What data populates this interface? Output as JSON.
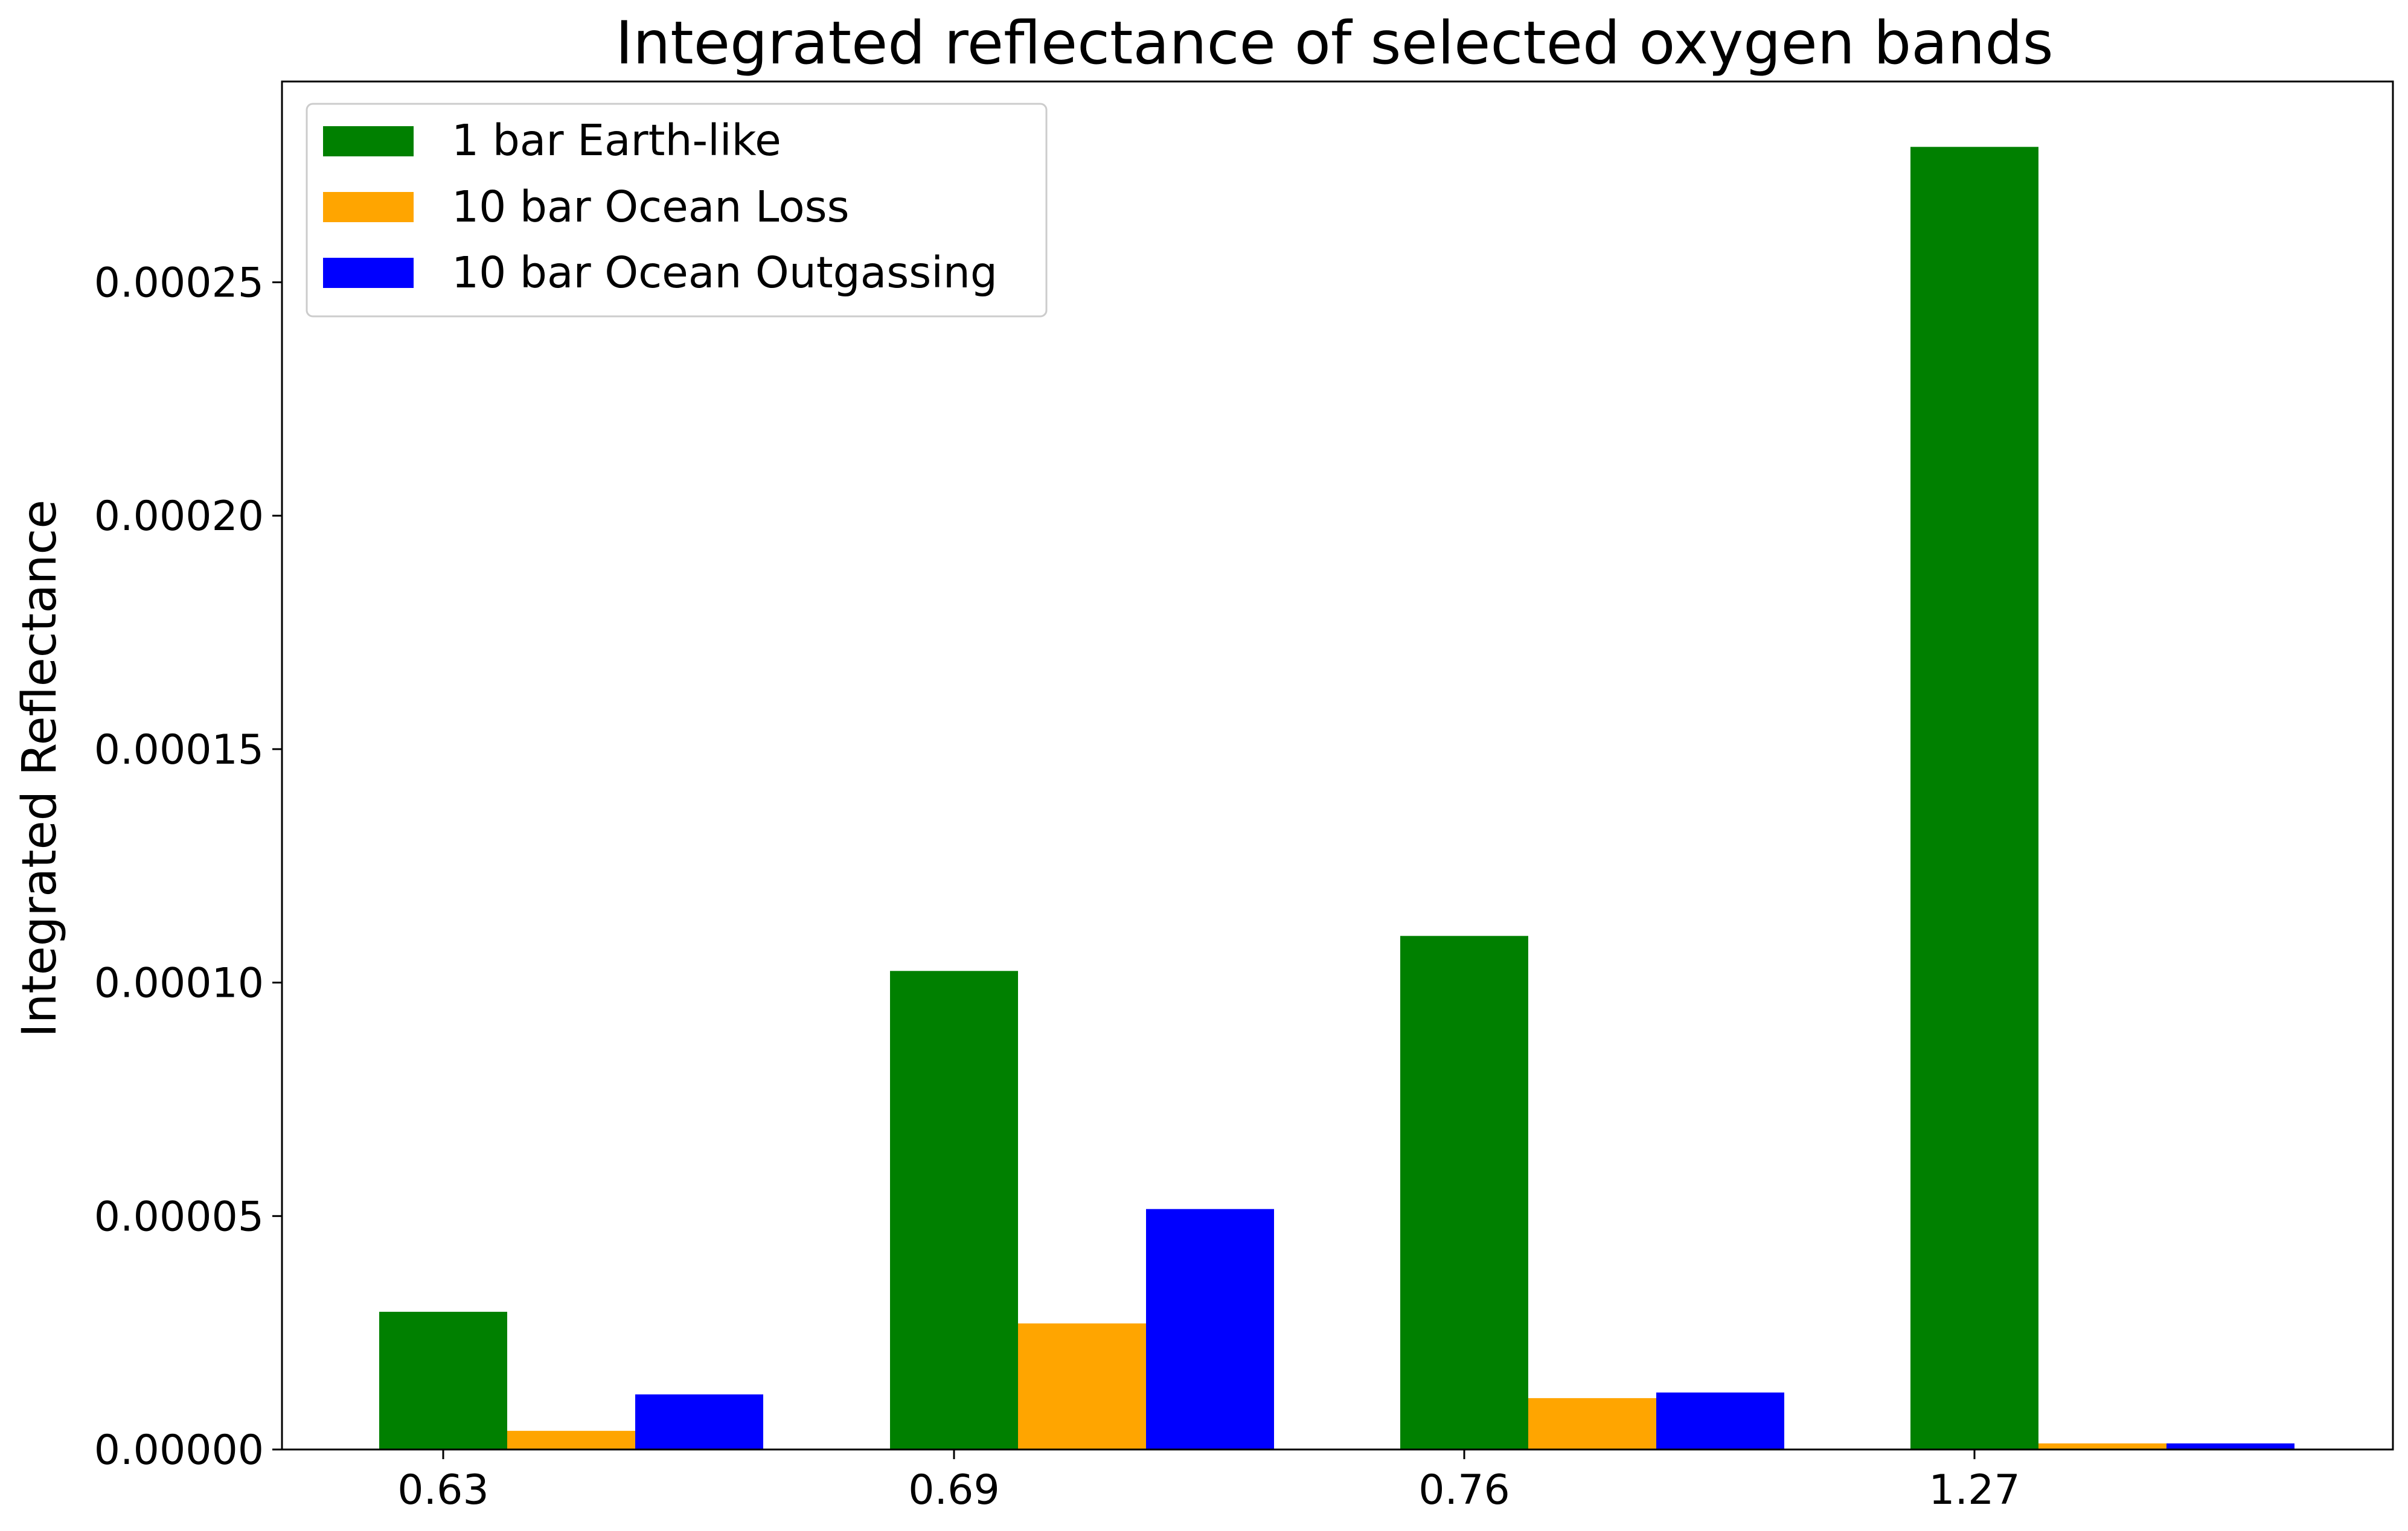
{
  "chart_data": {
    "type": "bar",
    "title": "Integrated reflectance of selected oxygen bands",
    "xlabel": "",
    "ylabel": "Integrated Reflectance",
    "categories": [
      "0.63",
      "0.69",
      "0.76",
      "1.27"
    ],
    "series": [
      {
        "name": "1 bar Earth-like",
        "color": "#008000",
        "values": [
          2.95e-05,
          0.0001025,
          0.00011,
          0.000279
        ]
      },
      {
        "name": "10 bar Ocean Loss",
        "color": "#FFA500",
        "values": [
          4e-06,
          2.7e-05,
          1.1e-05,
          1.3e-06
        ]
      },
      {
        "name": "10 bar Ocean Outgassing",
        "color": "#0000FF",
        "values": [
          1.18e-05,
          5.15e-05,
          1.22e-05,
          1.3e-06
        ]
      }
    ],
    "ylim": [
      0,
      0.000293
    ],
    "yticks": [
      "0.00000",
      "0.00005",
      "0.00010",
      "0.00015",
      "0.00020",
      "0.00025"
    ],
    "legend_position": "top-left",
    "grid": false
  }
}
